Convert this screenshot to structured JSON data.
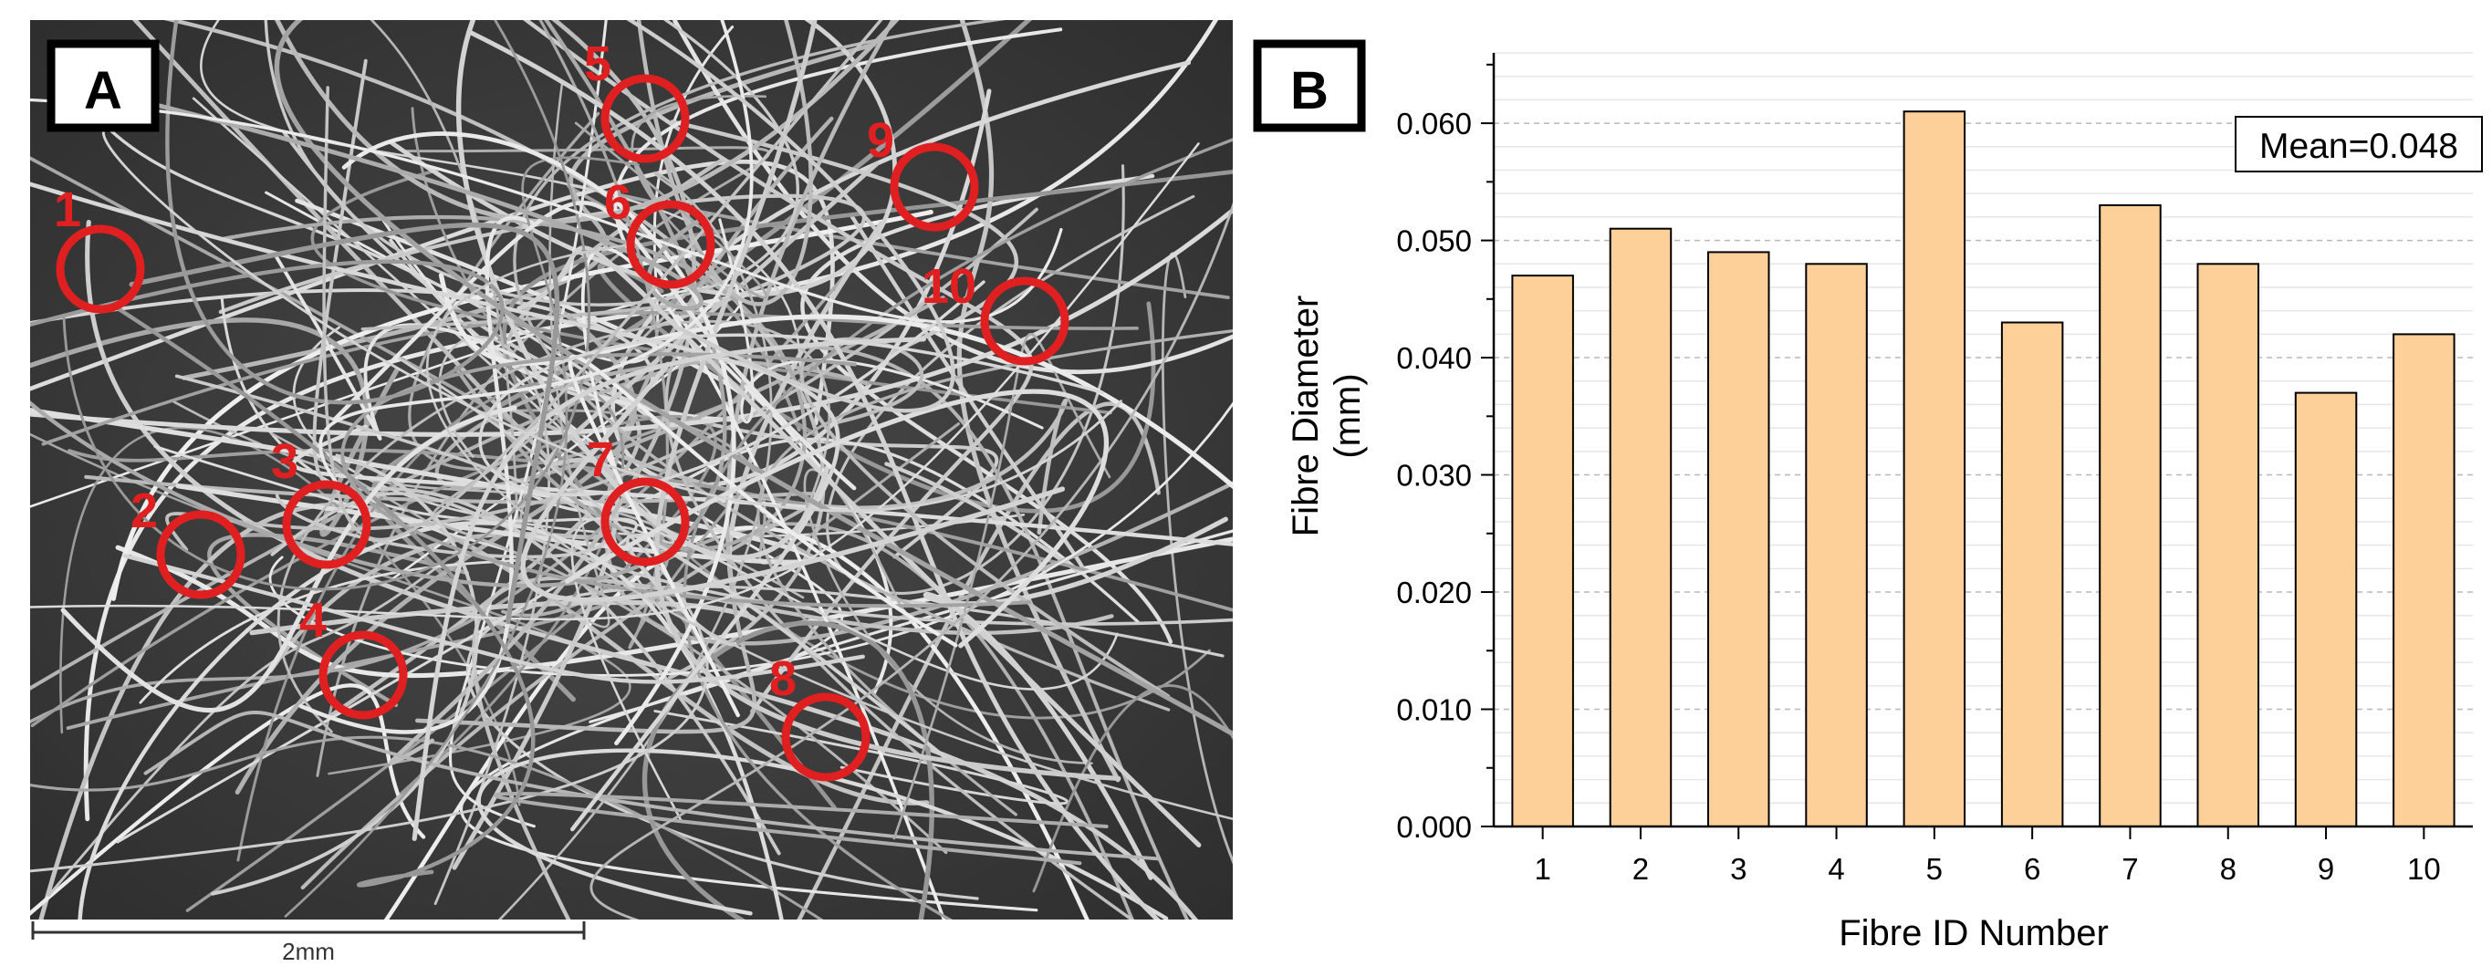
{
  "panel_a": {
    "label": "A",
    "scale_bar_label": "2mm",
    "markers": [
      {
        "id": "1",
        "cx": 1,
        "cy": 1
      },
      {
        "id": "2"
      },
      {
        "id": "3"
      },
      {
        "id": "4"
      },
      {
        "id": "5"
      },
      {
        "id": "6"
      },
      {
        "id": "7"
      },
      {
        "id": "8"
      },
      {
        "id": "9"
      },
      {
        "id": "10"
      }
    ],
    "colors": {
      "marker": "#e02020",
      "background": "#5a5a5a",
      "fibre": "#d8d8d8"
    }
  },
  "panel_b": {
    "label": "B"
  },
  "chart_data": {
    "type": "bar",
    "title": "",
    "xlabel": "Fibre ID Number",
    "ylabel_lines": [
      "Fibre Diameter",
      "(mm)"
    ],
    "categories": [
      "1",
      "2",
      "3",
      "4",
      "5",
      "6",
      "7",
      "8",
      "9",
      "10"
    ],
    "values": [
      0.047,
      0.051,
      0.049,
      0.048,
      0.061,
      0.043,
      0.053,
      0.048,
      0.037,
      0.042
    ],
    "ylim": [
      0,
      0.066
    ],
    "yticks": [
      {
        "value": 0.0,
        "label": "0.000"
      },
      {
        "value": 0.01,
        "label": "0.010"
      },
      {
        "value": 0.02,
        "label": "0.020"
      },
      {
        "value": 0.03,
        "label": "0.030"
      },
      {
        "value": 0.04,
        "label": "0.040"
      },
      {
        "value": 0.05,
        "label": "0.050"
      },
      {
        "value": 0.06,
        "label": "0.060"
      }
    ],
    "annotation": "Mean=0.048",
    "grid": true,
    "colors": {
      "bar": "#fdd09a",
      "bar_edge": "#000000",
      "grid": "#c8c8c8"
    }
  }
}
